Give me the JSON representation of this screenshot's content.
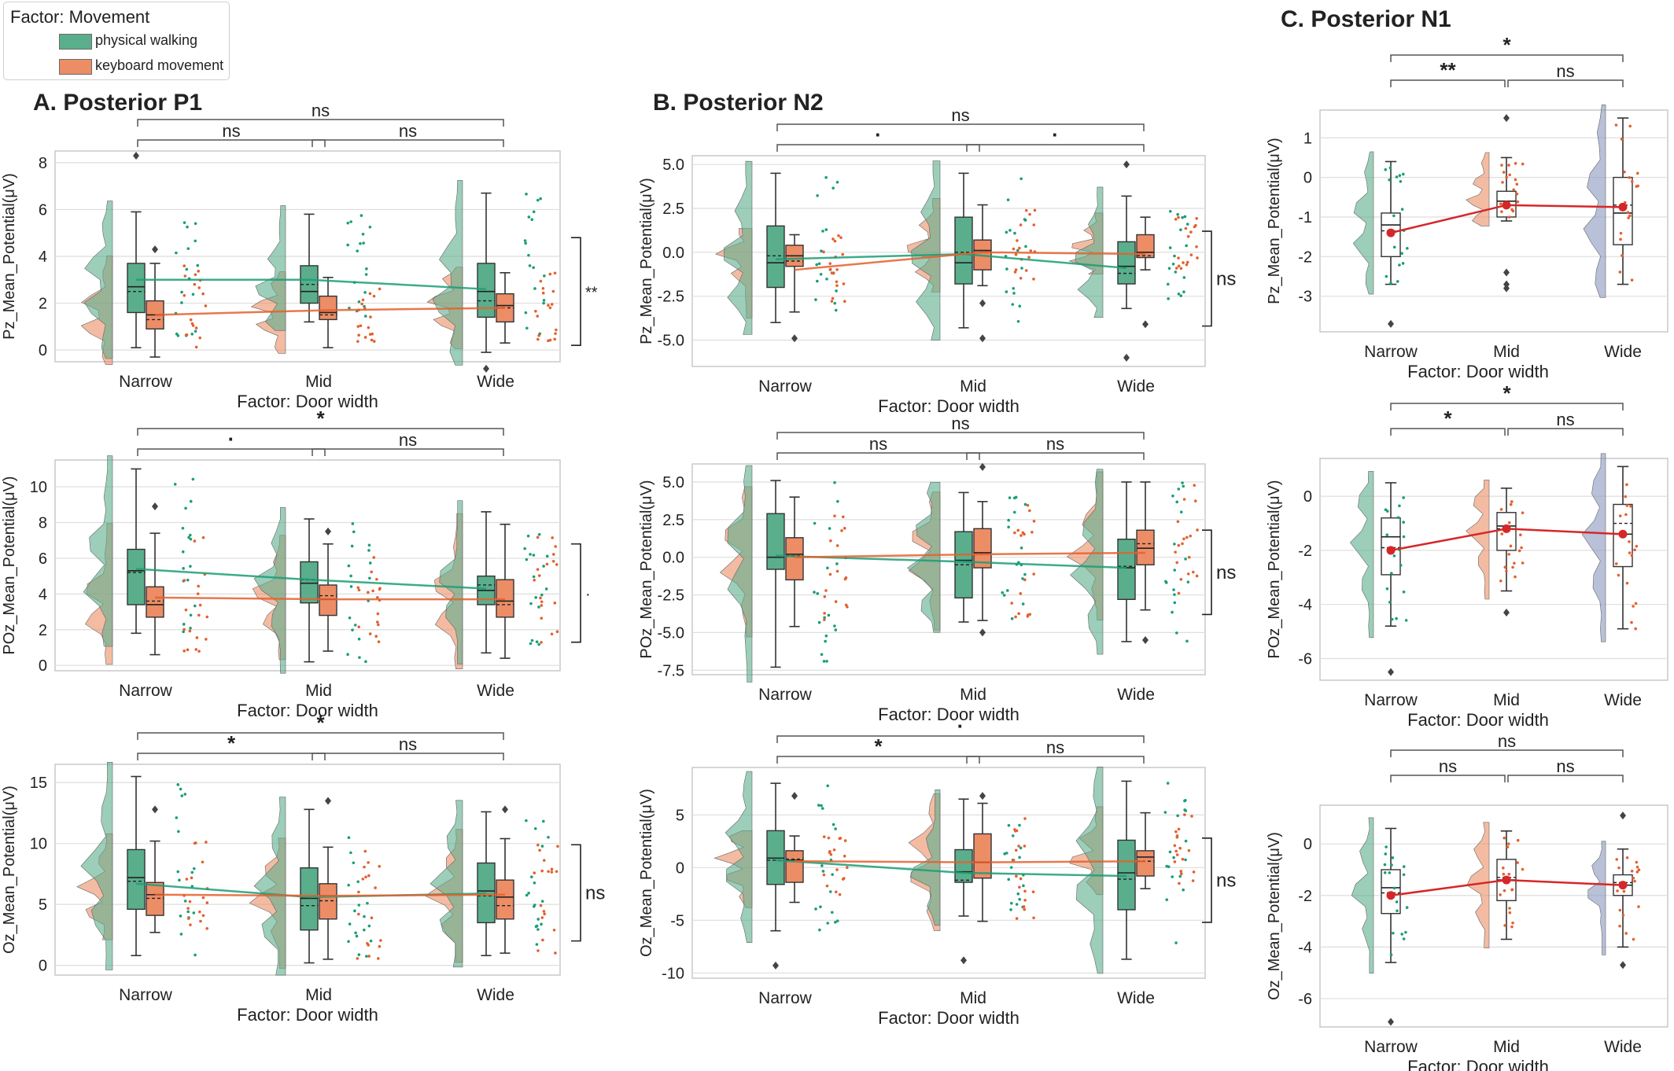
{
  "legend": {
    "title": "Factor: Movement",
    "items": [
      {
        "label": "physical walking",
        "color": "#5aae8c"
      },
      {
        "label": "keyboard movement",
        "color": "#ec8d66"
      }
    ]
  },
  "panel_titles": {
    "a": "A. Posterior P1",
    "b": "B. Posterior N2",
    "c": "C. Posterior N1"
  },
  "colors": {
    "walk": "#5aae8c",
    "key": "#ec8d66",
    "walk_dot": "#1a9e77",
    "key_dot": "#e4602e",
    "red": "#d62728",
    "blue_violin": "#8b98bf"
  },
  "chart_data": [
    {
      "id": "A1",
      "type": "raincloud",
      "ylabel": "Pz_Mean_Potential(μV)",
      "xlabel": "Factor: Door width",
      "categories": [
        "Narrow",
        "Mid",
        "Wide"
      ],
      "ylim": [
        -0.5,
        8.5
      ],
      "yticks": [
        0,
        2,
        4,
        6,
        8
      ],
      "series": [
        {
          "name": "physical walking",
          "means": [
            3.0,
            3.0,
            2.6
          ],
          "boxes": [
            {
              "q1": 1.6,
              "med": 2.7,
              "q3": 3.7,
              "lo": 0.1,
              "hi": 5.9,
              "mean": 2.5,
              "out": [
                8.3
              ]
            },
            {
              "q1": 2.0,
              "med": 2.5,
              "q3": 3.6,
              "lo": 1.2,
              "hi": 5.8,
              "mean": 2.8,
              "out": []
            },
            {
              "q1": 1.4,
              "med": 2.5,
              "q3": 3.7,
              "lo": -0.1,
              "hi": 6.7,
              "mean": 2.1,
              "out": [
                -0.8
              ]
            }
          ]
        },
        {
          "name": "keyboard movement",
          "means": [
            1.5,
            1.7,
            1.8
          ],
          "boxes": [
            {
              "q1": 0.9,
              "med": 1.5,
              "q3": 2.1,
              "lo": -0.3,
              "hi": 3.7,
              "mean": 1.3,
              "out": [
                4.3
              ]
            },
            {
              "q1": 1.3,
              "med": 1.6,
              "q3": 2.3,
              "lo": 0.1,
              "hi": 3.1,
              "mean": 1.5,
              "out": []
            },
            {
              "q1": 1.2,
              "med": 1.9,
              "q3": 2.4,
              "lo": 0.3,
              "hi": 3.3,
              "mean": 1.8,
              "out": []
            }
          ]
        }
      ],
      "brackets": [
        {
          "from": 0,
          "to": 1,
          "label": "ns"
        },
        {
          "from": 1,
          "to": 2,
          "label": "ns"
        },
        {
          "from": 0,
          "to": 2,
          "label": "ns"
        }
      ],
      "side": {
        "label": "**",
        "range": [
          0.2,
          4.8
        ]
      }
    },
    {
      "id": "A2",
      "type": "raincloud",
      "ylabel": "POz_Mean_Potential(μV)",
      "xlabel": "Factor: Door width",
      "categories": [
        "Narrow",
        "Mid",
        "Wide"
      ],
      "ylim": [
        -0.3,
        11.5
      ],
      "yticks": [
        0,
        2,
        4,
        6,
        8,
        10
      ],
      "series": [
        {
          "name": "physical walking",
          "means": [
            5.4,
            4.8,
            4.3
          ],
          "boxes": [
            {
              "q1": 3.4,
              "med": 5.3,
              "q3": 6.5,
              "lo": 1.8,
              "hi": 11.0,
              "mean": 5.2,
              "out": []
            },
            {
              "q1": 3.5,
              "med": 4.6,
              "q3": 5.8,
              "lo": 0.2,
              "hi": 8.2,
              "mean": 4.8,
              "out": []
            },
            {
              "q1": 3.4,
              "med": 4.2,
              "q3": 5.0,
              "lo": 0.7,
              "hi": 8.6,
              "mean": 4.5,
              "out": []
            }
          ]
        },
        {
          "name": "keyboard movement",
          "means": [
            3.8,
            3.7,
            3.7
          ],
          "boxes": [
            {
              "q1": 2.7,
              "med": 3.4,
              "q3": 4.4,
              "lo": 0.6,
              "hi": 7.4,
              "mean": 3.6,
              "out": [
                8.9
              ]
            },
            {
              "q1": 2.8,
              "med": 3.7,
              "q3": 4.5,
              "lo": 0.8,
              "hi": 6.8,
              "mean": 3.9,
              "out": [
                7.5
              ]
            },
            {
              "q1": 2.7,
              "med": 3.6,
              "q3": 4.8,
              "lo": 0.4,
              "hi": 7.9,
              "mean": 3.4,
              "out": []
            }
          ]
        }
      ],
      "brackets": [
        {
          "from": 0,
          "to": 1,
          "label": "·"
        },
        {
          "from": 1,
          "to": 2,
          "label": "ns"
        },
        {
          "from": 0,
          "to": 2,
          "label": "*"
        }
      ],
      "side": {
        "label": "·",
        "range": [
          1.3,
          6.8
        ]
      }
    },
    {
      "id": "A3",
      "type": "raincloud",
      "ylabel": "Oz_Mean_Potential(μV)",
      "xlabel": "Factor: Door width",
      "categories": [
        "Narrow",
        "Mid",
        "Wide"
      ],
      "ylim": [
        -0.8,
        16.5
      ],
      "yticks": [
        0,
        5,
        10,
        15
      ],
      "series": [
        {
          "name": "physical walking",
          "means": [
            6.7,
            5.6,
            5.9
          ],
          "boxes": [
            {
              "q1": 4.6,
              "med": 7.2,
              "q3": 9.5,
              "lo": 0.8,
              "hi": 15.5,
              "mean": 6.9,
              "out": []
            },
            {
              "q1": 2.9,
              "med": 5.5,
              "q3": 8.0,
              "lo": 0.2,
              "hi": 12.8,
              "mean": 4.9,
              "out": []
            },
            {
              "q1": 3.5,
              "med": 6.1,
              "q3": 8.4,
              "lo": 0.8,
              "hi": 12.6,
              "mean": 5.7,
              "out": []
            }
          ]
        },
        {
          "name": "keyboard movement",
          "means": [
            5.8,
            5.7,
            5.8
          ],
          "boxes": [
            {
              "q1": 4.1,
              "med": 5.8,
              "q3": 6.8,
              "lo": 2.7,
              "hi": 10.2,
              "mean": 5.5,
              "out": [
                12.8
              ]
            },
            {
              "q1": 3.8,
              "med": 5.7,
              "q3": 6.7,
              "lo": 0.5,
              "hi": 9.7,
              "mean": 5.3,
              "out": [
                13.5
              ]
            },
            {
              "q1": 3.8,
              "med": 5.6,
              "q3": 7.0,
              "lo": 1.0,
              "hi": 10.4,
              "mean": 4.9,
              "out": [
                12.8
              ]
            }
          ]
        }
      ],
      "brackets": [
        {
          "from": 0,
          "to": 1,
          "label": "*"
        },
        {
          "from": 1,
          "to": 2,
          "label": "ns"
        },
        {
          "from": 0,
          "to": 2,
          "label": "*"
        }
      ],
      "side": {
        "label": "ns",
        "range": [
          2.0,
          9.9
        ]
      }
    },
    {
      "id": "B1",
      "type": "raincloud",
      "ylabel": "Pz_Mean_Potential(μV)",
      "xlabel": "Factor: Door width",
      "categories": [
        "Narrow",
        "Mid",
        "Wide"
      ],
      "ylim": [
        -6.5,
        5.5
      ],
      "yticks": [
        -5.0,
        -2.5,
        0.0,
        2.5,
        5.0
      ],
      "series": [
        {
          "name": "physical walking",
          "means": [
            -0.4,
            -0.1,
            -0.9
          ],
          "boxes": [
            {
              "q1": -2.0,
              "med": -0.6,
              "q3": 1.5,
              "lo": -4.0,
              "hi": 4.5,
              "mean": -0.2,
              "out": []
            },
            {
              "q1": -1.8,
              "med": -0.6,
              "q3": 2.0,
              "lo": -4.3,
              "hi": 4.5,
              "mean": 0.0,
              "out": []
            },
            {
              "q1": -1.8,
              "med": -0.8,
              "q3": 0.6,
              "lo": -3.2,
              "hi": 3.2,
              "mean": -1.2,
              "out": [
                5.0,
                -6.0
              ]
            }
          ]
        },
        {
          "name": "keyboard movement",
          "means": [
            -1.0,
            0.0,
            -0.1
          ],
          "boxes": [
            {
              "q1": -0.8,
              "med": -0.2,
              "q3": 0.4,
              "lo": -3.4,
              "hi": 1.0,
              "mean": -0.5,
              "out": [
                -4.9
              ]
            },
            {
              "q1": -1.0,
              "med": 0.1,
              "q3": 0.7,
              "lo": -1.9,
              "hi": 2.7,
              "mean": 0.1,
              "out": [
                -2.9,
                -4.9
              ]
            },
            {
              "q1": -0.3,
              "med": 0.0,
              "q3": 1.0,
              "lo": -1.0,
              "hi": 2.0,
              "mean": -0.2,
              "out": [
                -4.1
              ]
            }
          ]
        }
      ],
      "brackets": [
        {
          "from": 0,
          "to": 1,
          "label": "·"
        },
        {
          "from": 1,
          "to": 2,
          "label": "·"
        },
        {
          "from": 0,
          "to": 2,
          "label": "ns"
        }
      ],
      "side": {
        "label": "ns",
        "range": [
          -4.2,
          1.2
        ]
      }
    },
    {
      "id": "B2",
      "type": "raincloud",
      "ylabel": "POz_Mean_Potential(μV)",
      "xlabel": "Factor: Door width",
      "categories": [
        "Narrow",
        "Mid",
        "Wide"
      ],
      "ylim": [
        -7.8,
        6.2
      ],
      "yticks": [
        -7.5,
        -5.0,
        -2.5,
        0.0,
        2.5,
        5.0
      ],
      "series": [
        {
          "name": "physical walking",
          "means": [
            0.1,
            -0.3,
            -0.7
          ],
          "boxes": [
            {
              "q1": -0.8,
              "med": 0.0,
              "q3": 2.9,
              "lo": -7.3,
              "hi": 5.1,
              "mean": 0.0,
              "out": []
            },
            {
              "q1": -2.7,
              "med": -0.2,
              "q3": 1.7,
              "lo": -4.3,
              "hi": 4.3,
              "mean": -0.5,
              "out": []
            },
            {
              "q1": -2.8,
              "med": -0.7,
              "q3": 1.2,
              "lo": -5.6,
              "hi": 5.0,
              "mean": -0.6,
              "out": []
            }
          ]
        },
        {
          "name": "keyboard movement",
          "means": [
            0.0,
            0.2,
            0.3
          ],
          "boxes": [
            {
              "q1": -1.5,
              "med": 0.2,
              "q3": 1.3,
              "lo": -4.6,
              "hi": 4.0,
              "mean": 0.1,
              "out": []
            },
            {
              "q1": -0.7,
              "med": 0.3,
              "q3": 1.9,
              "lo": -4.2,
              "hi": 3.7,
              "mean": 0.3,
              "out": [
                6.0,
                -5.0
              ]
            },
            {
              "q1": -0.5,
              "med": 0.6,
              "q3": 1.8,
              "lo": -3.5,
              "hi": 5.0,
              "mean": 0.9,
              "out": [
                -5.5
              ]
            }
          ]
        }
      ],
      "brackets": [
        {
          "from": 0,
          "to": 1,
          "label": "ns"
        },
        {
          "from": 1,
          "to": 2,
          "label": "ns"
        },
        {
          "from": 0,
          "to": 2,
          "label": "ns"
        }
      ],
      "side": {
        "label": "ns",
        "range": [
          -3.8,
          1.8
        ]
      }
    },
    {
      "id": "B3",
      "type": "raincloud",
      "ylabel": "Oz_Mean_Potential(μV)",
      "xlabel": "Factor: Door width",
      "categories": [
        "Narrow",
        "Mid",
        "Wide"
      ],
      "ylim": [
        -10.5,
        9.5
      ],
      "yticks": [
        -10,
        -5,
        0,
        5
      ],
      "series": [
        {
          "name": "physical walking",
          "means": [
            0.7,
            -0.5,
            -0.8
          ],
          "boxes": [
            {
              "q1": -1.6,
              "med": 0.9,
              "q3": 3.5,
              "lo": -6.0,
              "hi": 8.0,
              "mean": 0.7,
              "out": [
                -9.3
              ]
            },
            {
              "q1": -1.4,
              "med": -0.4,
              "q3": 1.7,
              "lo": -4.6,
              "hi": 6.5,
              "mean": -1.2,
              "out": [
                -8.8
              ]
            },
            {
              "q1": -4.0,
              "med": -0.5,
              "q3": 2.6,
              "lo": -8.7,
              "hi": 8.2,
              "mean": -1.1,
              "out": []
            }
          ]
        },
        {
          "name": "keyboard movement",
          "means": [
            0.6,
            0.5,
            0.6
          ],
          "boxes": [
            {
              "q1": -1.4,
              "med": 0.7,
              "q3": 1.6,
              "lo": -3.3,
              "hi": 3.0,
              "mean": 0.8,
              "out": [
                6.8
              ]
            },
            {
              "q1": -1.0,
              "med": 0.5,
              "q3": 3.2,
              "lo": -5.1,
              "hi": 6.1,
              "mean": 0.5,
              "out": [
                6.8
              ]
            },
            {
              "q1": -0.8,
              "med": 1.0,
              "q3": 1.6,
              "lo": -2.0,
              "hi": 5.2,
              "mean": 0.6,
              "out": []
            }
          ]
        }
      ],
      "brackets": [
        {
          "from": 0,
          "to": 1,
          "label": "*"
        },
        {
          "from": 1,
          "to": 2,
          "label": "ns"
        },
        {
          "from": 0,
          "to": 2,
          "label": "·"
        }
      ],
      "side": {
        "label": "ns",
        "range": [
          -5.2,
          2.8
        ]
      }
    },
    {
      "id": "C1",
      "type": "raincloud_single",
      "ylabel": "Pz_Mean_Potential(μV)",
      "xlabel": "Factor: Door width",
      "categories": [
        "Narrow",
        "Mid",
        "Wide"
      ],
      "ylim": [
        -3.9,
        1.7
      ],
      "yticks": [
        -3,
        -2,
        -1,
        0,
        1
      ],
      "means": [
        -1.4,
        -0.7,
        -0.75
      ],
      "boxes": [
        {
          "q1": -2.0,
          "med": -1.2,
          "q3": -0.9,
          "lo": -2.7,
          "hi": 0.4,
          "mean": -1.35,
          "out": [
            -3.7
          ]
        },
        {
          "q1": -1.0,
          "med": -0.6,
          "q3": -0.35,
          "lo": -1.1,
          "hi": 0.5,
          "mean": -0.6,
          "out": [
            1.5,
            -2.4,
            -2.7,
            -2.8
          ]
        },
        {
          "q1": -1.7,
          "med": -0.9,
          "q3": 0.0,
          "lo": -2.7,
          "hi": 1.5,
          "mean": -0.7,
          "out": []
        }
      ],
      "brackets": [
        {
          "from": 0,
          "to": 1,
          "label": "**"
        },
        {
          "from": 1,
          "to": 2,
          "label": "ns"
        },
        {
          "from": 0,
          "to": 2,
          "label": "*"
        }
      ]
    },
    {
      "id": "C2",
      "type": "raincloud_single",
      "ylabel": "POz_Mean_Potential(μV)",
      "xlabel": "Factor: Door width",
      "categories": [
        "Narrow",
        "Mid",
        "Wide"
      ],
      "ylim": [
        -6.8,
        1.4
      ],
      "yticks": [
        -6,
        -4,
        -2,
        0
      ],
      "means": [
        -2.0,
        -1.2,
        -1.4
      ],
      "boxes": [
        {
          "q1": -2.9,
          "med": -1.5,
          "q3": -0.8,
          "lo": -4.8,
          "hi": 0.5,
          "mean": -1.9,
          "out": [
            -6.5
          ]
        },
        {
          "q1": -2.0,
          "med": -1.1,
          "q3": -0.6,
          "lo": -3.5,
          "hi": 0.3,
          "mean": -1.2,
          "out": [
            -4.3
          ]
        },
        {
          "q1": -2.6,
          "med": -1.4,
          "q3": -0.3,
          "lo": -4.9,
          "hi": 1.1,
          "mean": -1.0,
          "out": []
        }
      ],
      "brackets": [
        {
          "from": 0,
          "to": 1,
          "label": "*"
        },
        {
          "from": 1,
          "to": 2,
          "label": "ns"
        },
        {
          "from": 0,
          "to": 2,
          "label": "*"
        }
      ]
    },
    {
      "id": "C3",
      "type": "raincloud_single",
      "ylabel": "Oz_Mean_Potential(μV)",
      "xlabel": "Factor: Door width",
      "categories": [
        "Narrow",
        "Mid",
        "Wide"
      ],
      "ylim": [
        -7.1,
        1.5
      ],
      "yticks": [
        -6,
        -4,
        -2,
        0
      ],
      "means": [
        -2.0,
        -1.4,
        -1.6
      ],
      "boxes": [
        {
          "q1": -2.7,
          "med": -1.7,
          "q3": -1.0,
          "lo": -4.6,
          "hi": 0.6,
          "mean": -1.9,
          "out": [
            -6.9
          ]
        },
        {
          "q1": -2.2,
          "med": -1.4,
          "q3": -0.6,
          "lo": -3.7,
          "hi": 0.5,
          "mean": -1.3,
          "out": []
        },
        {
          "q1": -2.0,
          "med": -1.6,
          "q3": -1.2,
          "lo": -4.0,
          "hi": -0.2,
          "mean": -1.5,
          "out": [
            1.1,
            -4.7
          ]
        }
      ],
      "brackets": [
        {
          "from": 0,
          "to": 1,
          "label": "ns"
        },
        {
          "from": 1,
          "to": 2,
          "label": "ns"
        },
        {
          "from": 0,
          "to": 2,
          "label": "ns"
        }
      ]
    }
  ]
}
